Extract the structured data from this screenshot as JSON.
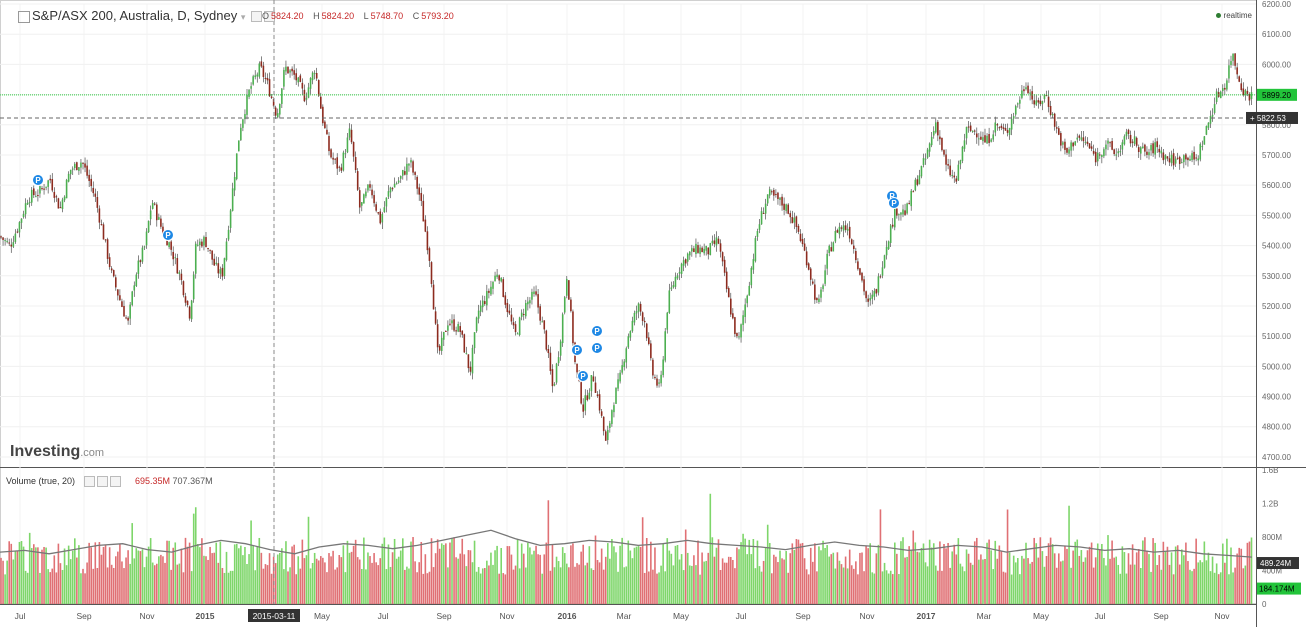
{
  "header": {
    "title": "S&P/ASX 200, Australia, D, Sydney",
    "ohlc": {
      "o_label": "O",
      "o": "5824.20",
      "h_label": "H",
      "h": "5824.20",
      "l_label": "L",
      "l": "5748.70",
      "c_label": "C",
      "c": "5793.20"
    },
    "realtime": "realtime"
  },
  "volume_header": {
    "title": "Volume (true, 20)",
    "v1": "695.35M",
    "v2": "707.367M"
  },
  "branding": {
    "logo": "Investing",
    "logo_suffix": ".com"
  },
  "colors": {
    "up": "#4caf50",
    "down": "#8d2b1f",
    "up_vol": "#7ed66a",
    "down_vol": "#e07074",
    "ma": "#777777",
    "last_price_tag": "#22c43a",
    "vol_tag": "#22c43a"
  },
  "chart_data": [
    {
      "type": "candlestick",
      "title": "S&P/ASX 200, Australia, D, Sydney",
      "y_ticks": [
        "6200.00",
        "6100.00",
        "6000.00",
        "5900.00",
        "5800.00",
        "5700.00",
        "5600.00",
        "5500.00",
        "5400.00",
        "5300.00",
        "5200.00",
        "5100.00",
        "5000.00",
        "4900.00",
        "4800.00",
        "4700.00"
      ],
      "ylim": [
        4670,
        6200
      ],
      "x_ticks": [
        "Jul",
        "Sep",
        "Nov",
        "2015",
        "2015-03-11",
        "May",
        "Jul",
        "Sep",
        "Nov",
        "2016",
        "Mar",
        "May",
        "Jul",
        "Sep",
        "Nov",
        "2017",
        "Mar",
        "May",
        "Jul",
        "Sep",
        "Nov"
      ],
      "price_tags": {
        "last": "5899.20",
        "crosshair": "5822.53"
      },
      "crosshair_date": "2015-03-11",
      "markers": [
        "P",
        "P",
        "P",
        "P",
        "P",
        "P",
        "P",
        "P",
        "P"
      ],
      "close_path": [
        [
          0,
          5430
        ],
        [
          10,
          5400
        ],
        [
          20,
          5480
        ],
        [
          28,
          5560
        ],
        [
          40,
          5580
        ],
        [
          50,
          5620
        ],
        [
          60,
          5520
        ],
        [
          70,
          5650
        ],
        [
          82,
          5680
        ],
        [
          95,
          5560
        ],
        [
          103,
          5440
        ],
        [
          112,
          5300
        ],
        [
          122,
          5200
        ],
        [
          128,
          5140
        ],
        [
          135,
          5300
        ],
        [
          145,
          5400
        ],
        [
          152,
          5550
        ],
        [
          160,
          5470
        ],
        [
          170,
          5400
        ],
        [
          180,
          5300
        ],
        [
          190,
          5170
        ],
        [
          196,
          5400
        ],
        [
          205,
          5420
        ],
        [
          215,
          5330
        ],
        [
          222,
          5300
        ],
        [
          230,
          5510
        ],
        [
          240,
          5790
        ],
        [
          250,
          5920
        ],
        [
          260,
          5990
        ],
        [
          268,
          5930
        ],
        [
          277,
          5830
        ],
        [
          285,
          5990
        ],
        [
          295,
          5960
        ],
        [
          305,
          5890
        ],
        [
          315,
          5990
        ],
        [
          322,
          5830
        ],
        [
          330,
          5700
        ],
        [
          340,
          5650
        ],
        [
          350,
          5780
        ],
        [
          360,
          5520
        ],
        [
          370,
          5600
        ],
        [
          380,
          5480
        ],
        [
          390,
          5590
        ],
        [
          400,
          5620
        ],
        [
          410,
          5680
        ],
        [
          420,
          5560
        ],
        [
          430,
          5350
        ],
        [
          438,
          5030
        ],
        [
          448,
          5150
        ],
        [
          460,
          5120
        ],
        [
          470,
          4980
        ],
        [
          478,
          5180
        ],
        [
          488,
          5240
        ],
        [
          498,
          5320
        ],
        [
          505,
          5220
        ],
        [
          515,
          5100
        ],
        [
          525,
          5200
        ],
        [
          535,
          5240
        ],
        [
          545,
          5100
        ],
        [
          553,
          4920
        ],
        [
          560,
          5080
        ],
        [
          567,
          5310
        ],
        [
          575,
          5010
        ],
        [
          583,
          4860
        ],
        [
          593,
          4970
        ],
        [
          600,
          4860
        ],
        [
          606,
          4740
        ],
        [
          613,
          4880
        ],
        [
          620,
          4960
        ],
        [
          628,
          5100
        ],
        [
          638,
          5200
        ],
        [
          645,
          5150
        ],
        [
          652,
          4980
        ],
        [
          660,
          4920
        ],
        [
          668,
          5220
        ],
        [
          678,
          5320
        ],
        [
          688,
          5370
        ],
        [
          698,
          5390
        ],
        [
          708,
          5380
        ],
        [
          718,
          5420
        ],
        [
          728,
          5230
        ],
        [
          738,
          5070
        ],
        [
          748,
          5260
        ],
        [
          758,
          5460
        ],
        [
          768,
          5570
        ],
        [
          778,
          5550
        ],
        [
          788,
          5520
        ],
        [
          798,
          5450
        ],
        [
          808,
          5340
        ],
        [
          818,
          5190
        ],
        [
          828,
          5370
        ],
        [
          838,
          5460
        ],
        [
          848,
          5460
        ],
        [
          858,
          5340
        ],
        [
          868,
          5200
        ],
        [
          876,
          5250
        ],
        [
          886,
          5400
        ],
        [
          896,
          5520
        ],
        [
          906,
          5510
        ],
        [
          916,
          5610
        ],
        [
          926,
          5690
        ],
        [
          936,
          5810
        ],
        [
          946,
          5660
        ],
        [
          956,
          5610
        ],
        [
          966,
          5780
        ],
        [
          976,
          5780
        ],
        [
          986,
          5740
        ],
        [
          996,
          5800
        ],
        [
          1006,
          5770
        ],
        [
          1016,
          5860
        ],
        [
          1026,
          5940
        ],
        [
          1036,
          5860
        ],
        [
          1046,
          5900
        ],
        [
          1056,
          5790
        ],
        [
          1066,
          5700
        ],
        [
          1076,
          5760
        ],
        [
          1086,
          5740
        ],
        [
          1096,
          5690
        ],
        [
          1106,
          5740
        ],
        [
          1116,
          5700
        ],
        [
          1126,
          5760
        ],
        [
          1136,
          5740
        ],
        [
          1146,
          5700
        ],
        [
          1156,
          5730
        ],
        [
          1166,
          5690
        ],
        [
          1176,
          5680
        ],
        [
          1186,
          5700
        ],
        [
          1196,
          5680
        ],
        [
          1206,
          5780
        ],
        [
          1216,
          5890
        ],
        [
          1226,
          5940
        ],
        [
          1232,
          6040
        ],
        [
          1240,
          5940
        ],
        [
          1246,
          5900
        ],
        [
          1251,
          5899
        ]
      ]
    },
    {
      "type": "bar",
      "title": "Volume (true, 20)",
      "y_ticks": [
        "1.6B",
        "1.2B",
        "800M",
        "400M",
        "0"
      ],
      "ylim": [
        0,
        1600000000
      ],
      "value_tags": {
        "ma": "489.24M",
        "last": "184.174M"
      },
      "moving_average_ma20": [
        620,
        640,
        600,
        650,
        700,
        720,
        650,
        620,
        700,
        760,
        720,
        650,
        600,
        680,
        720,
        700,
        660,
        700,
        760,
        820,
        880,
        780,
        700,
        720,
        760,
        740,
        700,
        720,
        760,
        720,
        700,
        680,
        650,
        700,
        740,
        700,
        680,
        640,
        660,
        700,
        680,
        620,
        660,
        700,
        680,
        640,
        660,
        620,
        640,
        600,
        580,
        560
      ]
    }
  ]
}
